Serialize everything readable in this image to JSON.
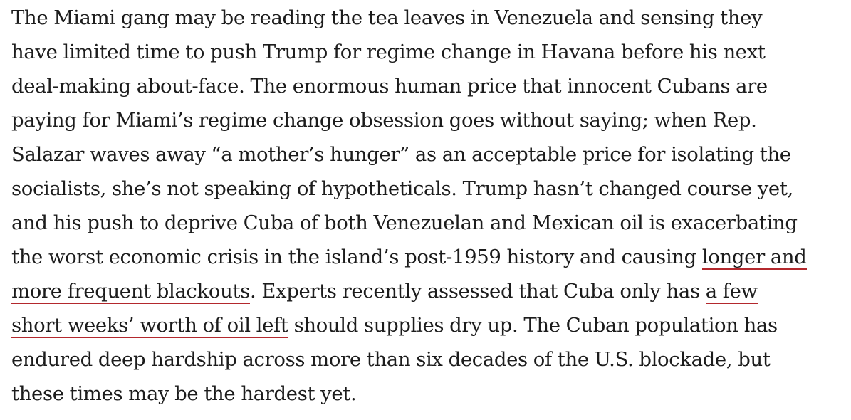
{
  "article": {
    "lines": [
      "The Miami gang may be reading the tea leaves in Venezuela and sensing they",
      "have limited time to push Trump for regime change in Havana before his next",
      "deal-making about-face. The enormous human price that innocent Cubans are",
      "paying for Miami’s regime change obsession goes without saying; when Rep.",
      "Salazar waves away “a mother’s hunger” as an acceptable price for isolating the",
      "socialists, she’s not speaking of hypotheticals. Trump hasn’t changed course yet,",
      "and his push to deprive Cuba of both Venezuelan and Mexican oil is exacerbating"
    ],
    "line8_text": "the worst economic crisis in the island’s post-1959 history and causing ",
    "link1_part1": "longer and",
    "link1_part2": "more frequent blackouts",
    "line9_after": ". Experts recently assessed that Cuba only has ",
    "link2_part1": "a few",
    "link2_part2": "short weeks’ worth of oil left",
    "line10_after": " should supplies dry up. The Cuban population has",
    "line11": "endured deep hardship across more than six decades of the U.S. blockade, but",
    "line12": "these times may be the hardest yet."
  },
  "colors": {
    "text": "#1c1c1c",
    "link_underline": "#b3282d",
    "background": "#ffffff"
  }
}
